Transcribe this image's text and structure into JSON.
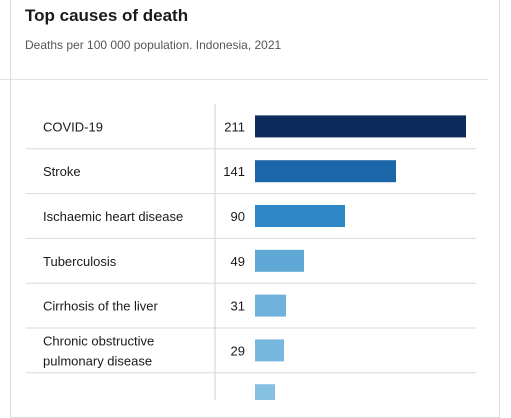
{
  "header": {
    "title": "Top causes of death",
    "subtitle": "Deaths per 100 000 population. Indonesia, 2021"
  },
  "colors": {
    "bar_shades": [
      "#0d2a5c",
      "#1a66a8",
      "#2e87c4",
      "#5fa8d6",
      "#6fb2dc",
      "#78b8df",
      "#86c0e3"
    ],
    "row_divider": "#d9d9d9",
    "column_divider": "#cfcfcf"
  },
  "chart_data": {
    "type": "bar",
    "orientation": "horizontal",
    "categories": [
      [
        "COVID-19"
      ],
      [
        "Stroke"
      ],
      [
        "Ischaemic heart disease"
      ],
      [
        "Tuberculosis"
      ],
      [
        "Cirrhosis of the liver"
      ],
      [
        "Chronic obstructive",
        "pulmonary disease"
      ],
      [
        ""
      ]
    ],
    "values": [
      211,
      141,
      90,
      49,
      31,
      29,
      20
    ],
    "value_labels": [
      "211",
      "141",
      "90",
      "49",
      "31",
      "29",
      ""
    ],
    "xlim": [
      0,
      211
    ],
    "grid": false,
    "legend": "none"
  }
}
